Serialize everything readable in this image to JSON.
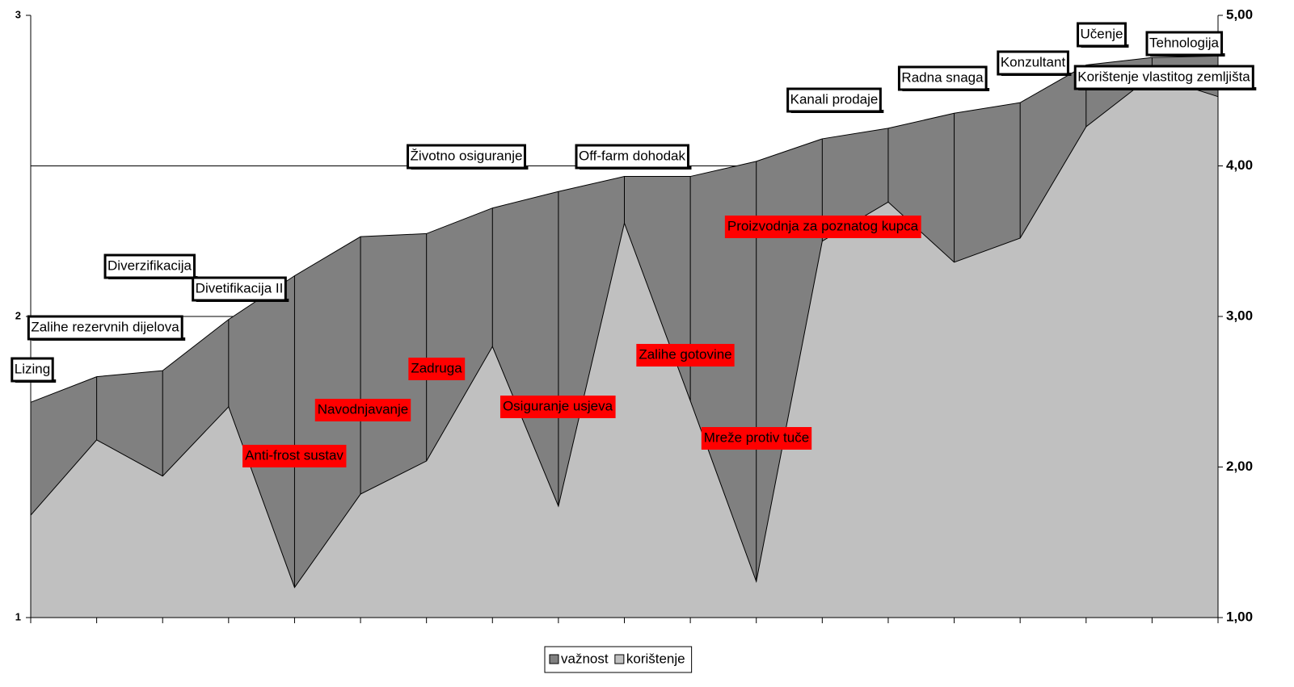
{
  "chart_data": {
    "type": "area",
    "categories": [
      "Lizing",
      "Zalihe rezervnih dijelova",
      "Diverzifikacija",
      "Divetifikacija II",
      "Anti-frost sustav",
      "Navodnjavanje",
      "Zadruga",
      "Životno osiguranje",
      "Osiguranje usjeva",
      "Off-farm dohodak",
      "Zalihe gotovine",
      "Mreže protiv tuče",
      "Proizvodnja za poznatog kupca",
      "Kanali prodaje",
      "Radna snaga",
      "Konzultant",
      "Učenje",
      "Tehnologija",
      "Korištenje vlastitog zemljišta"
    ],
    "label_colors": [
      "#ffffff",
      "#ffffff",
      "#ffffff",
      "#ffffff",
      "#ff0000",
      "#ff0000",
      "#ff0000",
      "#ffffff",
      "#ff0000",
      "#ffffff",
      "#ff0000",
      "#ff0000",
      "#ff0000",
      "#ffffff",
      "#ffffff",
      "#ffffff",
      "#ffffff",
      "#ffffff",
      "#ffffff"
    ],
    "series": [
      {
        "name": "važnost",
        "color": "#808080",
        "axis": "y2",
        "values": [
          2.43,
          2.6,
          2.64,
          2.98,
          3.27,
          3.53,
          3.55,
          3.72,
          3.83,
          3.93,
          3.93,
          4.03,
          4.18,
          4.25,
          4.35,
          4.42,
          4.67,
          4.72,
          4.73
        ]
      },
      {
        "name": "korištenje",
        "color": "#c0c0c0",
        "values": [
          1.34,
          1.59,
          1.47,
          1.7,
          1.1,
          1.41,
          1.52,
          1.9,
          1.37,
          2.31,
          1.72,
          1.12,
          2.25,
          2.38,
          2.18,
          2.26,
          2.63,
          2.8,
          2.73
        ]
      }
    ],
    "ylim": [
      1,
      3
    ],
    "yticks": [
      1,
      2,
      3
    ],
    "y2lim": [
      1,
      5
    ],
    "y2ticks": [
      {
        "value": 1,
        "label": "1,00"
      },
      {
        "value": 2,
        "label": "2,00"
      },
      {
        "value": 3,
        "label": "3,00"
      },
      {
        "value": 4,
        "label": "4,00"
      },
      {
        "value": 5,
        "label": "5,00"
      }
    ],
    "grid": true
  }
}
